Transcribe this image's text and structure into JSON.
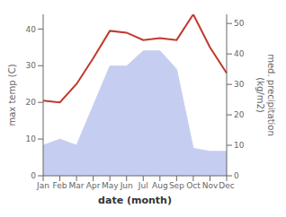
{
  "chart_data": {
    "type": "line",
    "xlabel": "date (month)",
    "ylabel": "max temp (C)",
    "y2label": "med. precipitation\n(kg/m2)",
    "categories": [
      "Jan",
      "Feb",
      "Mar",
      "Apr",
      "May",
      "Jun",
      "Jul",
      "Aug",
      "Sep",
      "Oct",
      "Nov",
      "Dec"
    ],
    "series": [
      {
        "type": "area",
        "axis": "y2",
        "color": "#c5cef0",
        "values": [
          10,
          12,
          10,
          23,
          36,
          36,
          41,
          41,
          35,
          9,
          8,
          8
        ]
      },
      {
        "type": "line",
        "color": "#c0392b",
        "values": [
          20.5,
          20.0,
          25.0,
          32.0,
          39.5,
          39.0,
          37.0,
          37.5,
          37.0,
          44.0,
          35.0,
          28.0
        ]
      }
    ],
    "ylim": [
      0,
      44
    ],
    "yticks": [
      0,
      10,
      20,
      30,
      40
    ],
    "y2lim": [
      0,
      53
    ],
    "y2ticks": [
      0,
      10,
      20,
      30,
      40,
      50
    ],
    "grid": false
  }
}
